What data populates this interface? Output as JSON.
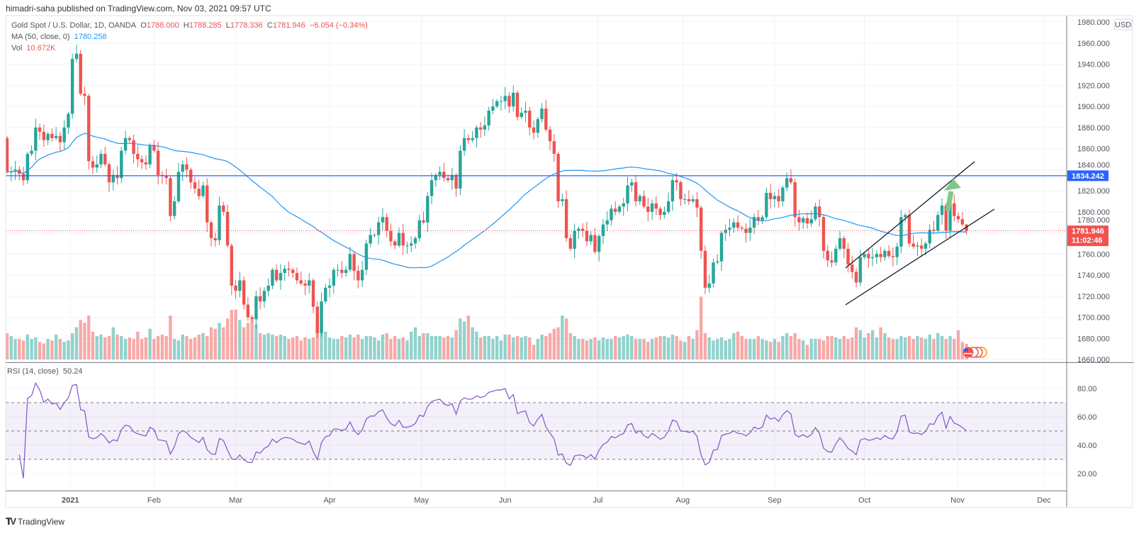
{
  "publisher": "himadri-saha published on TradingView.com, Nov 03, 2021 09:57 UTC",
  "legend": {
    "symbol": "Gold Spot / U.S. Dollar, 1D, OANDA",
    "open_label": "O",
    "open": "1788.000",
    "high_label": "H",
    "high": "1788.285",
    "low_label": "L",
    "low": "1778.336",
    "close_label": "C",
    "close": "1781.946",
    "change": "−6.054 (−0.34%)",
    "ma_label": "MA (50, close, 0)",
    "ma_value": "1780.258",
    "vol_label": "Vol",
    "vol_value": "10.672K"
  },
  "rsi_legend": {
    "label": "RSI (14, close)",
    "value": "50.24"
  },
  "axis": {
    "currency": "USD",
    "price_ticks": [
      "1660.000",
      "1680.000",
      "1700.000",
      "1720.000",
      "1740.000",
      "1760.000",
      "1780.000",
      "1800.000",
      "1820.000",
      "1840.000",
      "1860.000",
      "1880.000",
      "1900.000",
      "1920.000",
      "1940.000",
      "1960.000",
      "1980.000"
    ],
    "rsi_ticks": [
      "20.00",
      "40.00",
      "60.00",
      "80.00"
    ],
    "time_ticks": [
      "2021",
      "Feb",
      "Mar",
      "Apr",
      "May",
      "Jun",
      "Jul",
      "Aug",
      "Sep",
      "Oct",
      "Nov",
      "Dec"
    ],
    "horizontal_line_label": "1834.242",
    "last_price_label": "1781.946",
    "countdown": "11:02:46"
  },
  "brand": "TradingView",
  "colors": {
    "up": "#26a69a",
    "down": "#ef5350",
    "ma": "#2196f3",
    "hline": "#2962ff",
    "rsi": "#7e57c2",
    "arrow": "#81c784"
  },
  "chart_data": {
    "type": "candlestick",
    "title": "Gold Spot / U.S. Dollar, 1D, OANDA",
    "ylim": [
      1660,
      1980
    ],
    "rsi_ylim": [
      0,
      100
    ],
    "rsi_bands": [
      30,
      50,
      70
    ],
    "horizontal_line": 1834.242,
    "first_open": 1870,
    "last_bar": {
      "open": 1788.0,
      "high": 1788.285,
      "low": 1778.336,
      "close": 1781.946,
      "volume_k": 10.672
    },
    "close": [
      1838,
      1838,
      1840,
      1836,
      1830,
      1855,
      1858,
      1880,
      1876,
      1868,
      1874,
      1870,
      1872,
      1866,
      1880,
      1893,
      1945,
      1950,
      1912,
      1910,
      1848,
      1842,
      1845,
      1855,
      1845,
      1828,
      1835,
      1832,
      1858,
      1870,
      1868,
      1855,
      1850,
      1847,
      1845,
      1863,
      1858,
      1835,
      1834,
      1832,
      1796,
      1810,
      1838,
      1845,
      1840,
      1828,
      1822,
      1815,
      1825,
      1790,
      1775,
      1773,
      1806,
      1800,
      1768,
      1730,
      1725,
      1735,
      1712,
      1700,
      1698,
      1720,
      1715,
      1725,
      1730,
      1745,
      1735,
      1742,
      1746,
      1745,
      1742,
      1735,
      1732,
      1730,
      1735,
      1710,
      1685,
      1715,
      1728,
      1730,
      1745,
      1745,
      1742,
      1745,
      1760,
      1744,
      1735,
      1745,
      1770,
      1778,
      1778,
      1790,
      1795,
      1782,
      1772,
      1768,
      1780,
      1768,
      1768,
      1770,
      1775,
      1792,
      1790,
      1815,
      1830,
      1835,
      1838,
      1832,
      1830,
      1835,
      1822,
      1858,
      1870,
      1868,
      1870,
      1880,
      1878,
      1882,
      1896,
      1900,
      1905,
      1905,
      1910,
      1900,
      1913,
      1890,
      1894,
      1896,
      1880,
      1875,
      1888,
      1898,
      1878,
      1867,
      1855,
      1810,
      1812,
      1775,
      1765,
      1782,
      1784,
      1782,
      1772,
      1778,
      1762,
      1777,
      1788,
      1792,
      1803,
      1800,
      1805,
      1808,
      1825,
      1828,
      1810,
      1815,
      1805,
      1800,
      1808,
      1803,
      1797,
      1800,
      1810,
      1830,
      1828,
      1812,
      1812,
      1810,
      1812,
      1804,
      1763,
      1728,
      1732,
      1752,
      1753,
      1780,
      1783,
      1785,
      1790,
      1785,
      1784,
      1780,
      1785,
      1795,
      1792,
      1795,
      1818,
      1812,
      1815,
      1810,
      1823,
      1832,
      1828,
      1795,
      1790,
      1794,
      1789,
      1793,
      1805,
      1795,
      1763,
      1754,
      1752,
      1765,
      1775,
      1765,
      1750,
      1743,
      1733,
      1757,
      1760,
      1756,
      1757,
      1760,
      1757,
      1763,
      1758,
      1757,
      1767,
      1795,
      1797,
      1770,
      1767,
      1768,
      1765,
      1770,
      1783,
      1782,
      1797,
      1806,
      1782,
      1808,
      1796,
      1793,
      1788,
      1781.946
    ],
    "volume_k": [
      18,
      16,
      14,
      14,
      13,
      17,
      14,
      15,
      12,
      11,
      14,
      13,
      17,
      14,
      12,
      13,
      18,
      22,
      27,
      25,
      30,
      19,
      16,
      17,
      15,
      16,
      22,
      17,
      16,
      14,
      15,
      14,
      19,
      14,
      15,
      21,
      14,
      16,
      17,
      16,
      30,
      14,
      13,
      17,
      16,
      14,
      15,
      17,
      18,
      16,
      22,
      21,
      25,
      22,
      28,
      34,
      34,
      27,
      22,
      25,
      27,
      24,
      18,
      17,
      18,
      17,
      16,
      17,
      16,
      14,
      15,
      16,
      13,
      15,
      14,
      15,
      25,
      22,
      19,
      15,
      14,
      14,
      16,
      15,
      17,
      15,
      17,
      14,
      16,
      16,
      15,
      13,
      17,
      18,
      14,
      16,
      14,
      15,
      13,
      19,
      22,
      16,
      18,
      18,
      16,
      16,
      16,
      15,
      16,
      15,
      20,
      28,
      26,
      30,
      22,
      19,
      15,
      16,
      16,
      14,
      16,
      13,
      17,
      17,
      15,
      16,
      15,
      16,
      15,
      10,
      14,
      17,
      16,
      18,
      21,
      22,
      30,
      28,
      18,
      16,
      14,
      14,
      13,
      14,
      15,
      13,
      15,
      14,
      14,
      16,
      15,
      16,
      17,
      16,
      14,
      14,
      14,
      12,
      14,
      15,
      16,
      16,
      15,
      17,
      16,
      13,
      12,
      16,
      14,
      20,
      43,
      18,
      15,
      13,
      14,
      15,
      13,
      14,
      18,
      19,
      16,
      14,
      14,
      14,
      16,
      14,
      13,
      12,
      14,
      12,
      16,
      18,
      16,
      18,
      14,
      13,
      10,
      14,
      14,
      14,
      13,
      16,
      16,
      15,
      14,
      16,
      14,
      15,
      22,
      20,
      15,
      18,
      20,
      15,
      22,
      18,
      15,
      14,
      14,
      16,
      15,
      16,
      14,
      16,
      15,
      14,
      17,
      14,
      18,
      16,
      14,
      16,
      14,
      20,
      12,
      10.672
    ]
  }
}
